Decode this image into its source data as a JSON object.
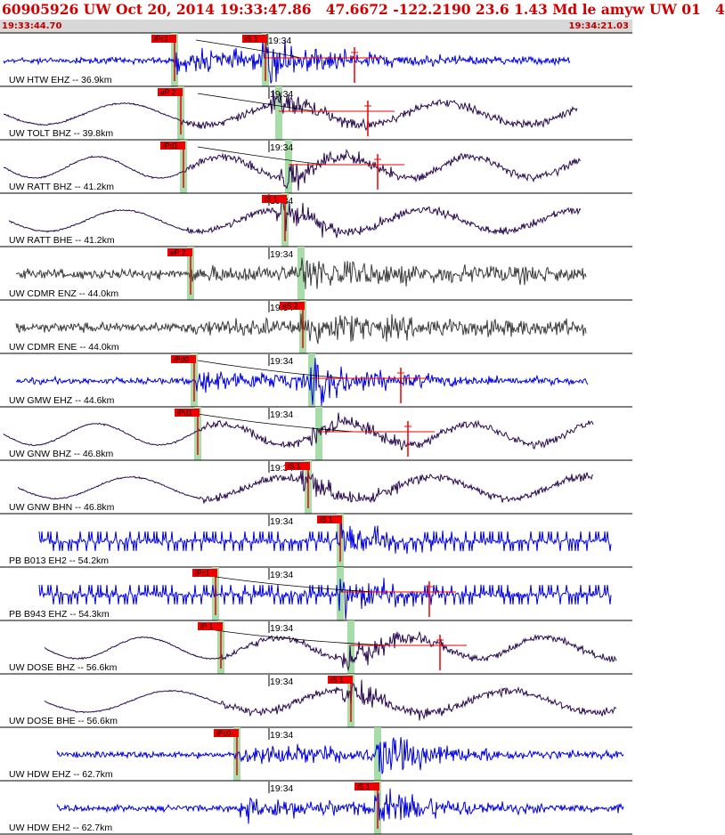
{
  "header": {
    "title": "60905926 UW Oct 20, 2014 19:33:47.86   47.6672 -122.2190 23.6 1.43 Md le amyw UW 01   4",
    "time_start": "19:33:44.70",
    "time_end": "19:34:21.03"
  },
  "minute_label": "19:34",
  "colors": {
    "blue_trace": "#0000dd",
    "purple_trace": "#2a0a50",
    "gray_trace": "#3c3c3c",
    "pick_flag": "#ee0000",
    "pick_band": "#a8dca8",
    "fit_line": "#000000",
    "header_text": "#d00000",
    "header_bar": "#d8d8d8"
  },
  "traces": [
    {
      "label": "UW HTW EHZ -- 36.9km",
      "color": "blue",
      "style": "hf",
      "p_pick": "iPc1",
      "s_pick": "iS 1",
      "coda": true
    },
    {
      "label": "UW TOLT BHZ -- 39.8km",
      "color": "purple",
      "style": "lf",
      "p_pick": "eP 2",
      "s_pick": "",
      "coda": true
    },
    {
      "label": "UW RATT BHZ -- 41.2km",
      "color": "purple",
      "style": "lf",
      "p_pick": "iPd1",
      "s_pick": "",
      "coda": true
    },
    {
      "label": "UW RATT BHE -- 41.2km",
      "color": "purple",
      "style": "lf",
      "p_pick": "",
      "s_pick": "iS 1",
      "coda": false
    },
    {
      "label": "UW CDMR ENZ -- 44.0km",
      "color": "gray",
      "style": "noise",
      "p_pick": "eP 2",
      "s_pick": "",
      "coda": false
    },
    {
      "label": "UW CDMR ENE -- 44.0km",
      "color": "gray",
      "style": "noise",
      "p_pick": "",
      "s_pick": "eS 2",
      "coda": false
    },
    {
      "label": "UW GMW EHZ -- 44.6km",
      "color": "blue",
      "style": "hf",
      "p_pick": "iPd0",
      "s_pick": "",
      "coda": true
    },
    {
      "label": "UW GNW BHZ -- 46.8km",
      "color": "purple",
      "style": "lf",
      "p_pick": "iPd1",
      "s_pick": "",
      "coda": true
    },
    {
      "label": "UW GNW BHN -- 46.8km",
      "color": "purple",
      "style": "lf",
      "p_pick": "",
      "s_pick": "iS 1",
      "coda": false
    },
    {
      "label": "PB B013 EH2 -- 54.2km",
      "color": "blue",
      "style": "spiky",
      "p_pick": "",
      "s_pick": "iS 1",
      "coda": false
    },
    {
      "label": "PB B943 EHZ -- 54.3km",
      "color": "blue",
      "style": "spiky",
      "p_pick": "iPc1",
      "s_pick": "",
      "coda": true
    },
    {
      "label": "UW DOSE BHZ -- 56.6km",
      "color": "purple",
      "style": "lf",
      "p_pick": "iP 1",
      "s_pick": "",
      "coda": true
    },
    {
      "label": "UW DOSE BHE -- 56.6km",
      "color": "purple",
      "style": "lf",
      "p_pick": "",
      "s_pick": "iS 1",
      "coda": false
    },
    {
      "label": "UW HDW EHZ -- 62.7km",
      "color": "blue",
      "style": "hf",
      "p_pick": "iPc0",
      "s_pick": "",
      "coda": false
    },
    {
      "label": "UW HDW EH2 -- 62.7km",
      "color": "blue",
      "style": "hf",
      "p_pick": "",
      "s_pick": "iS 1",
      "coda": false
    }
  ]
}
